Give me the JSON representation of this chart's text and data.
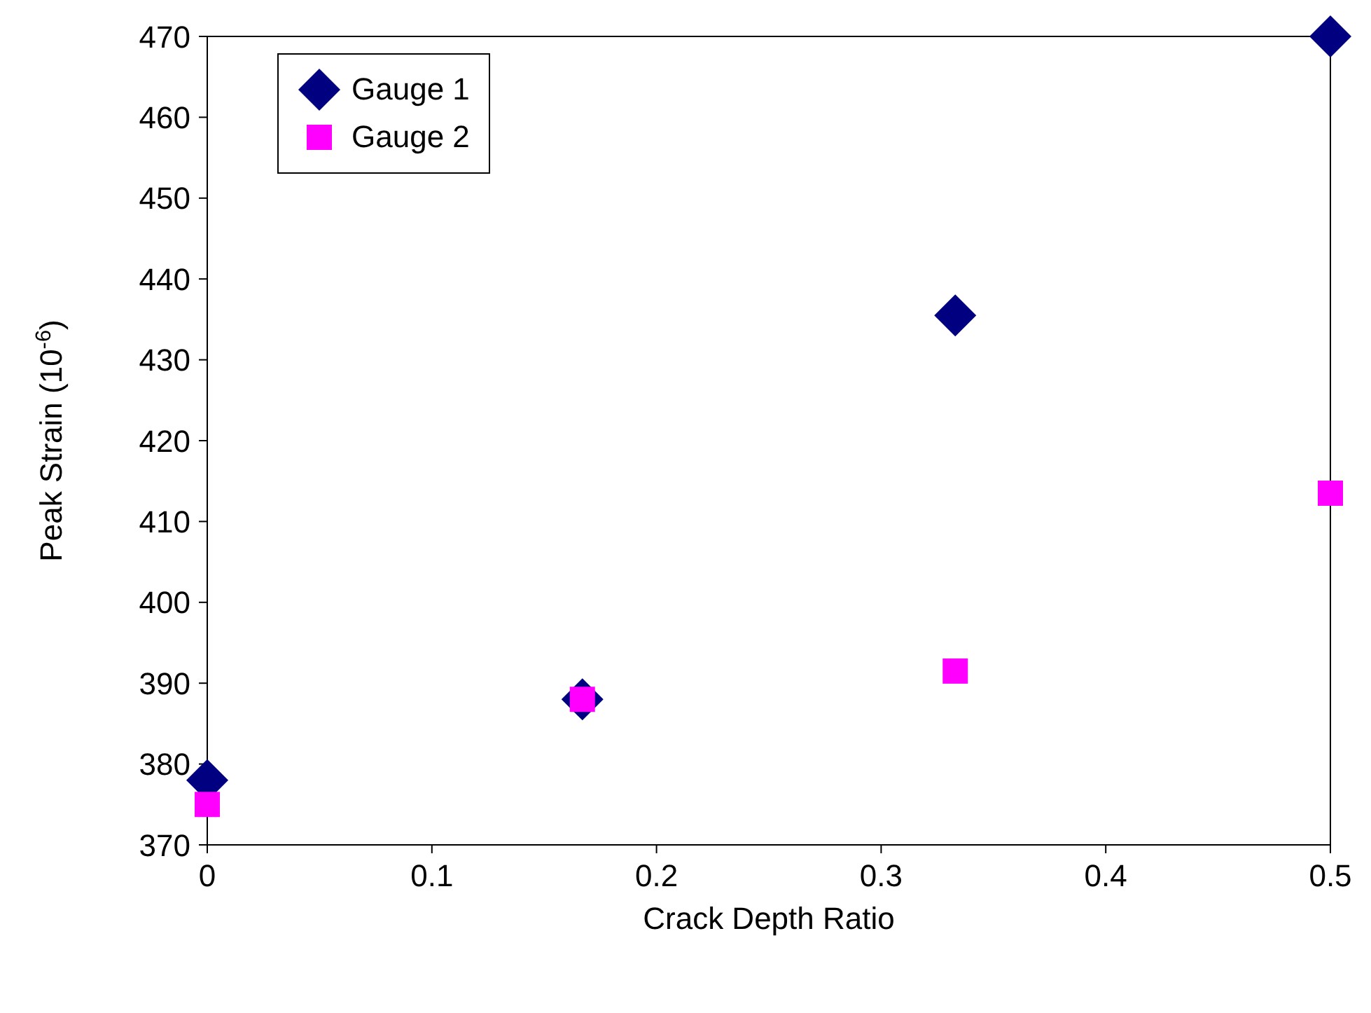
{
  "chart_data": {
    "type": "scatter",
    "xlabel": "Crack Depth Ratio",
    "ylabel": "Peak Strain (10$^{-6}$)",
    "x": [
      0,
      0.167,
      0.333,
      0.5
    ],
    "series": [
      {
        "name": "Gauge 1",
        "color": "#000080",
        "marker": "diamond",
        "values": [
          378,
          388,
          435.5,
          470
        ]
      },
      {
        "name": "Gauge 2",
        "color": "#ff00ff",
        "marker": "square",
        "values": [
          375,
          388,
          391.5,
          413.5
        ]
      }
    ],
    "xlim": [
      0,
      0.5
    ],
    "xticks": [
      0,
      0.1,
      0.2,
      0.3,
      0.4,
      0.5
    ],
    "ylim": [
      370,
      470
    ],
    "yticks": [
      370,
      380,
      390,
      400,
      410,
      420,
      430,
      440,
      450,
      460,
      470
    ],
    "legend": "top left"
  }
}
